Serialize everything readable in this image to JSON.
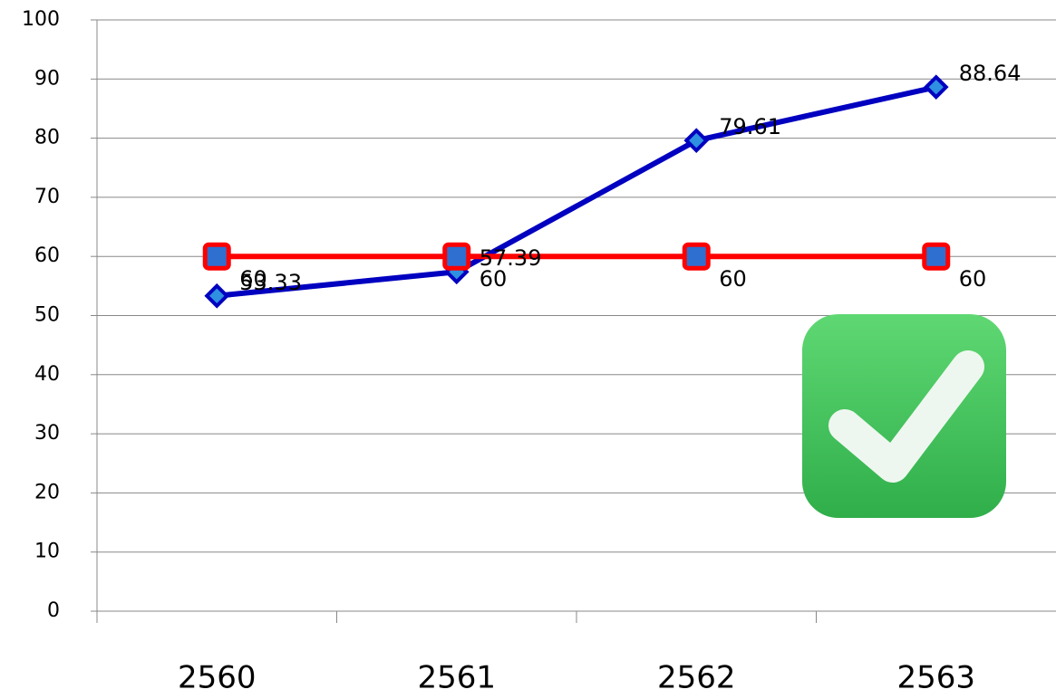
{
  "chart_data": {
    "type": "line",
    "categories": [
      "2560",
      "2561",
      "2562",
      "2563"
    ],
    "series": [
      {
        "color": "#0000c0",
        "marker": "diamond",
        "marker_fill": "#2f8fe0",
        "values": [
          53.33,
          57.39,
          79.61,
          88.64
        ]
      },
      {
        "color": "#ff0000",
        "marker": "square",
        "marker_fill": "#2f6fd0",
        "values": [
          60,
          60,
          60,
          60
        ]
      }
    ],
    "ylim": [
      0,
      100
    ],
    "yticks": [
      0,
      10,
      20,
      30,
      40,
      50,
      60,
      70,
      80,
      90,
      100
    ],
    "grid": true
  }
}
